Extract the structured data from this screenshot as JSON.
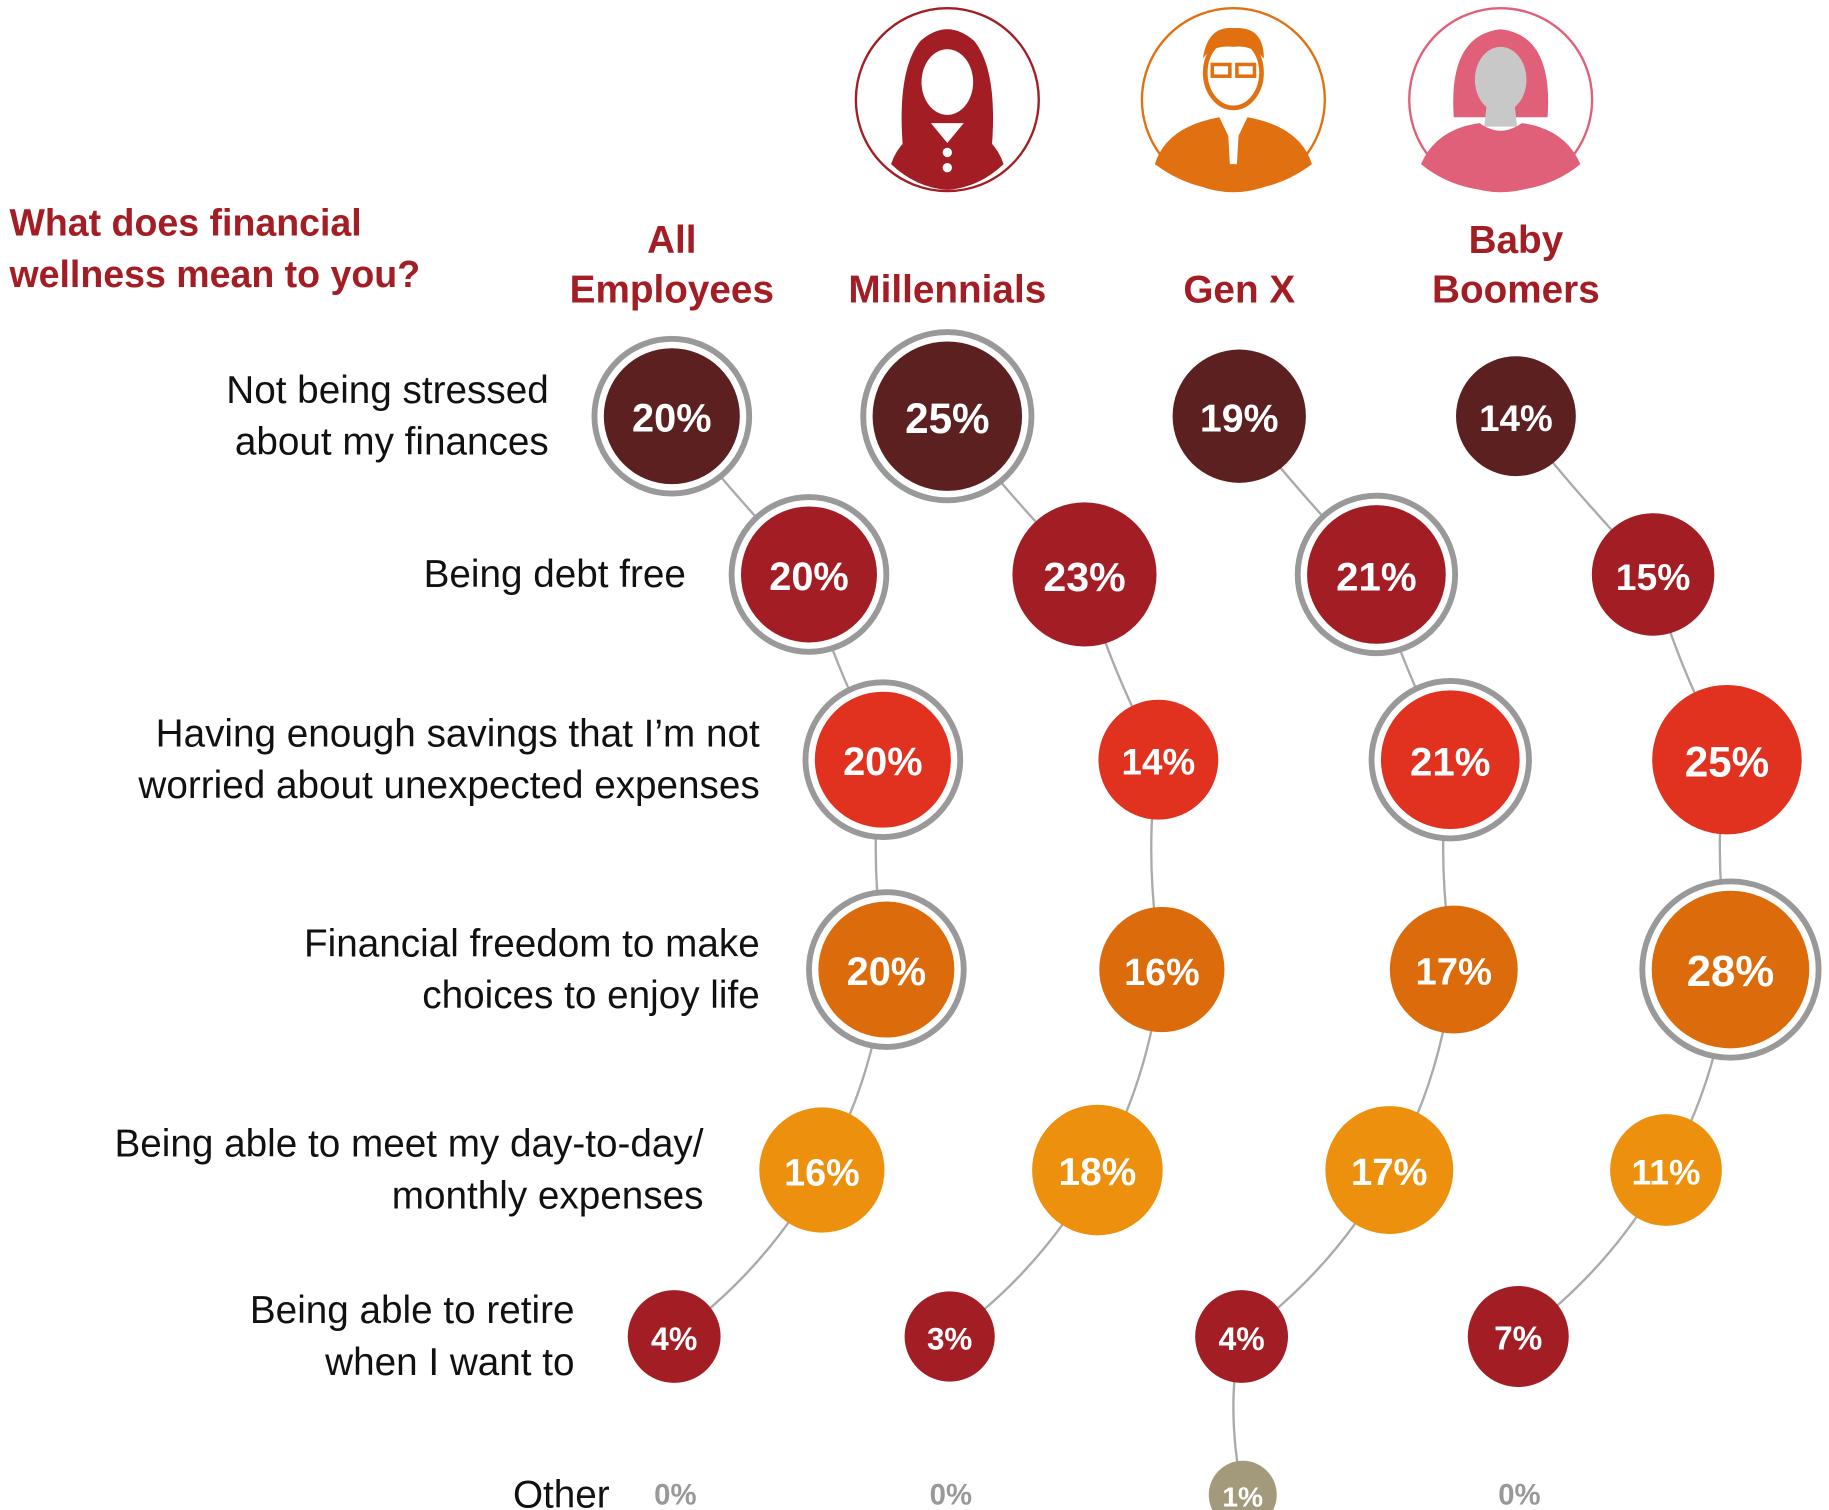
{
  "chart_data": {
    "type": "bubble",
    "title": "What does financial wellness mean to you?",
    "title_color": "#a31d24",
    "categories": [
      [
        "Not being stressed",
        "about my finances"
      ],
      [
        "Being debt free"
      ],
      [
        "Having enough savings that I’m not",
        "worried about unexpected expenses"
      ],
      [
        "Financial freedom to make",
        "choices to enjoy life"
      ],
      [
        "Being able to meet my day-to-day/",
        "monthly expenses"
      ],
      [
        "Being able to retire",
        "when I want to"
      ],
      [
        "Other"
      ]
    ],
    "category_colors": [
      "#5c2020",
      "#a31d24",
      "#e1311f",
      "#dc6b0c",
      "#ec900e",
      "#a31d24",
      "#a39a7c"
    ],
    "series": [
      {
        "name": "All Employees",
        "values": [
          20,
          20,
          20,
          20,
          16,
          4,
          0
        ],
        "value_labels": [
          "20%",
          "20%",
          "20%",
          "20%",
          "16%",
          "4%",
          "0%"
        ]
      },
      {
        "name": "Millennials",
        "values": [
          25,
          23,
          14,
          16,
          18,
          3,
          0
        ],
        "value_labels": [
          "25%",
          "23%",
          "14%",
          "16%",
          "18%",
          "3%",
          "0%"
        ]
      },
      {
        "name": "Gen X",
        "values": [
          19,
          21,
          21,
          17,
          17,
          4,
          1
        ],
        "value_labels": [
          "19%",
          "21%",
          "21%",
          "17%",
          "17%",
          "4%",
          "1%"
        ]
      },
      {
        "name": "Baby Boomers",
        "values": [
          14,
          15,
          25,
          28,
          11,
          7,
          0
        ],
        "value_labels": [
          "14%",
          "15%",
          "25%",
          "28%",
          "11%",
          "7%",
          "0%"
        ]
      }
    ]
  }
}
